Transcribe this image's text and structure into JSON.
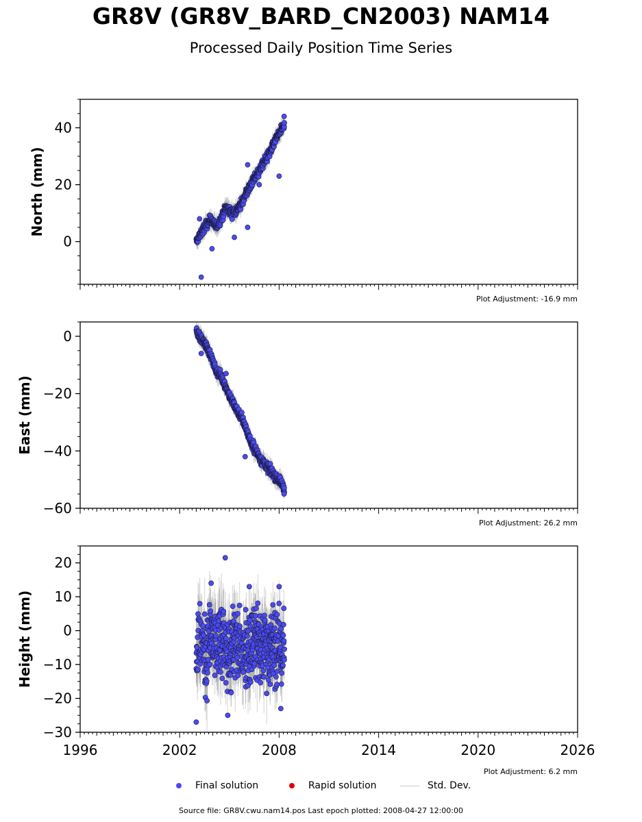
{
  "header": {
    "title": "GR8V (GR8V_BARD_CN2003) NAM14",
    "subtitle": "Processed Daily Position Time Series"
  },
  "legend": {
    "final_label": "Final solution",
    "rapid_label": "Rapid solution",
    "std_label": "Std. Dev."
  },
  "footer": {
    "source_text": "Source file: GR8V.cwu.nam14.pos  Last epoch plotted: 2008-04-27 12:00:00"
  },
  "colors": {
    "final": "#4b4bf0",
    "rapid": "#e00000",
    "std": "#b0b0b0"
  },
  "chart_data": [
    {
      "type": "scatter",
      "ylabel": "North (mm)",
      "xlim": [
        1996,
        2026
      ],
      "ylim": [
        -15,
        50
      ],
      "yticks": [
        0,
        20,
        40
      ],
      "xticks": [],
      "adjustment": "Plot Adjustment: -16.9 mm",
      "series": [
        {
          "name": "Final solution",
          "x": [
            2003.0,
            2003.3,
            2003.6,
            2003.9,
            2004.2,
            2004.5,
            2004.8,
            2005.1,
            2005.4,
            2005.7,
            2006.0,
            2006.3,
            2006.6,
            2006.9,
            2007.2,
            2007.5,
            2007.8,
            2008.1,
            2008.32
          ],
          "y": [
            0,
            3,
            6,
            8,
            5,
            8,
            12,
            10,
            11,
            13,
            17,
            20,
            23,
            26,
            29,
            32,
            36,
            39,
            41
          ]
        }
      ],
      "outliers": [
        {
          "x": 2003.3,
          "y": -12.5
        },
        {
          "x": 2003.2,
          "y": 8
        },
        {
          "x": 2003.95,
          "y": -2.5
        },
        {
          "x": 2005.3,
          "y": 1.5
        },
        {
          "x": 2006.1,
          "y": 5
        },
        {
          "x": 2006.1,
          "y": 27
        },
        {
          "x": 2006.8,
          "y": 20
        },
        {
          "x": 2008.0,
          "y": 23
        },
        {
          "x": 2008.3,
          "y": 44
        }
      ]
    },
    {
      "type": "scatter",
      "ylabel": "East (mm)",
      "xlim": [
        1996,
        2026
      ],
      "ylim": [
        -60,
        5
      ],
      "yticks": [
        -60,
        -40,
        -20,
        0
      ],
      "xticks": [],
      "adjustment": "Plot Adjustment: 26.2 mm",
      "series": [
        {
          "name": "Final solution",
          "x": [
            2003.0,
            2003.3,
            2003.6,
            2003.9,
            2004.2,
            2004.5,
            2004.8,
            2005.1,
            2005.4,
            2005.7,
            2006.0,
            2006.3,
            2006.6,
            2006.9,
            2007.2,
            2007.5,
            2007.8,
            2008.1,
            2008.32
          ],
          "y": [
            1.5,
            -1,
            -3,
            -7,
            -12,
            -14,
            -18,
            -22,
            -25,
            -28,
            -32,
            -37,
            -40,
            -43,
            -45,
            -47,
            -49,
            -51,
            -53
          ]
        }
      ],
      "outliers": [
        {
          "x": 2003.3,
          "y": -6
        },
        {
          "x": 2004.8,
          "y": -13
        },
        {
          "x": 2005.95,
          "y": -42
        },
        {
          "x": 2008.3,
          "y": -55
        }
      ]
    },
    {
      "type": "scatter",
      "ylabel": "Height (mm)",
      "xlim": [
        1996,
        2026
      ],
      "ylim": [
        -30,
        25
      ],
      "yticks": [
        -30,
        -20,
        -10,
        0,
        10,
        20
      ],
      "xticks": [
        1996,
        2002,
        2008,
        2014,
        2020,
        2026
      ],
      "adjustment": "Plot Adjustment: 6.2 mm",
      "series": [
        {
          "name": "Final solution",
          "x": [
            2003.0,
            2003.3,
            2003.6,
            2003.9,
            2004.2,
            2004.5,
            2004.8,
            2005.1,
            2005.4,
            2005.7,
            2006.0,
            2006.3,
            2006.6,
            2006.9,
            2007.2,
            2007.5,
            2007.8,
            2008.1,
            2008.32
          ],
          "y": [
            -5,
            -3,
            -8,
            -2,
            -6,
            -4,
            -5,
            -7,
            -3,
            -6,
            -4,
            -5,
            -2,
            -6,
            -3,
            -5,
            -4,
            -6,
            -5
          ],
          "spread": 10
        }
      ],
      "outliers": [
        {
          "x": 2004.75,
          "y": 21.5
        },
        {
          "x": 2003.9,
          "y": 14
        },
        {
          "x": 2006.2,
          "y": 13
        },
        {
          "x": 2008.0,
          "y": 13
        },
        {
          "x": 2003.0,
          "y": -27
        },
        {
          "x": 2004.9,
          "y": -25
        },
        {
          "x": 2008.1,
          "y": -23
        }
      ]
    }
  ]
}
